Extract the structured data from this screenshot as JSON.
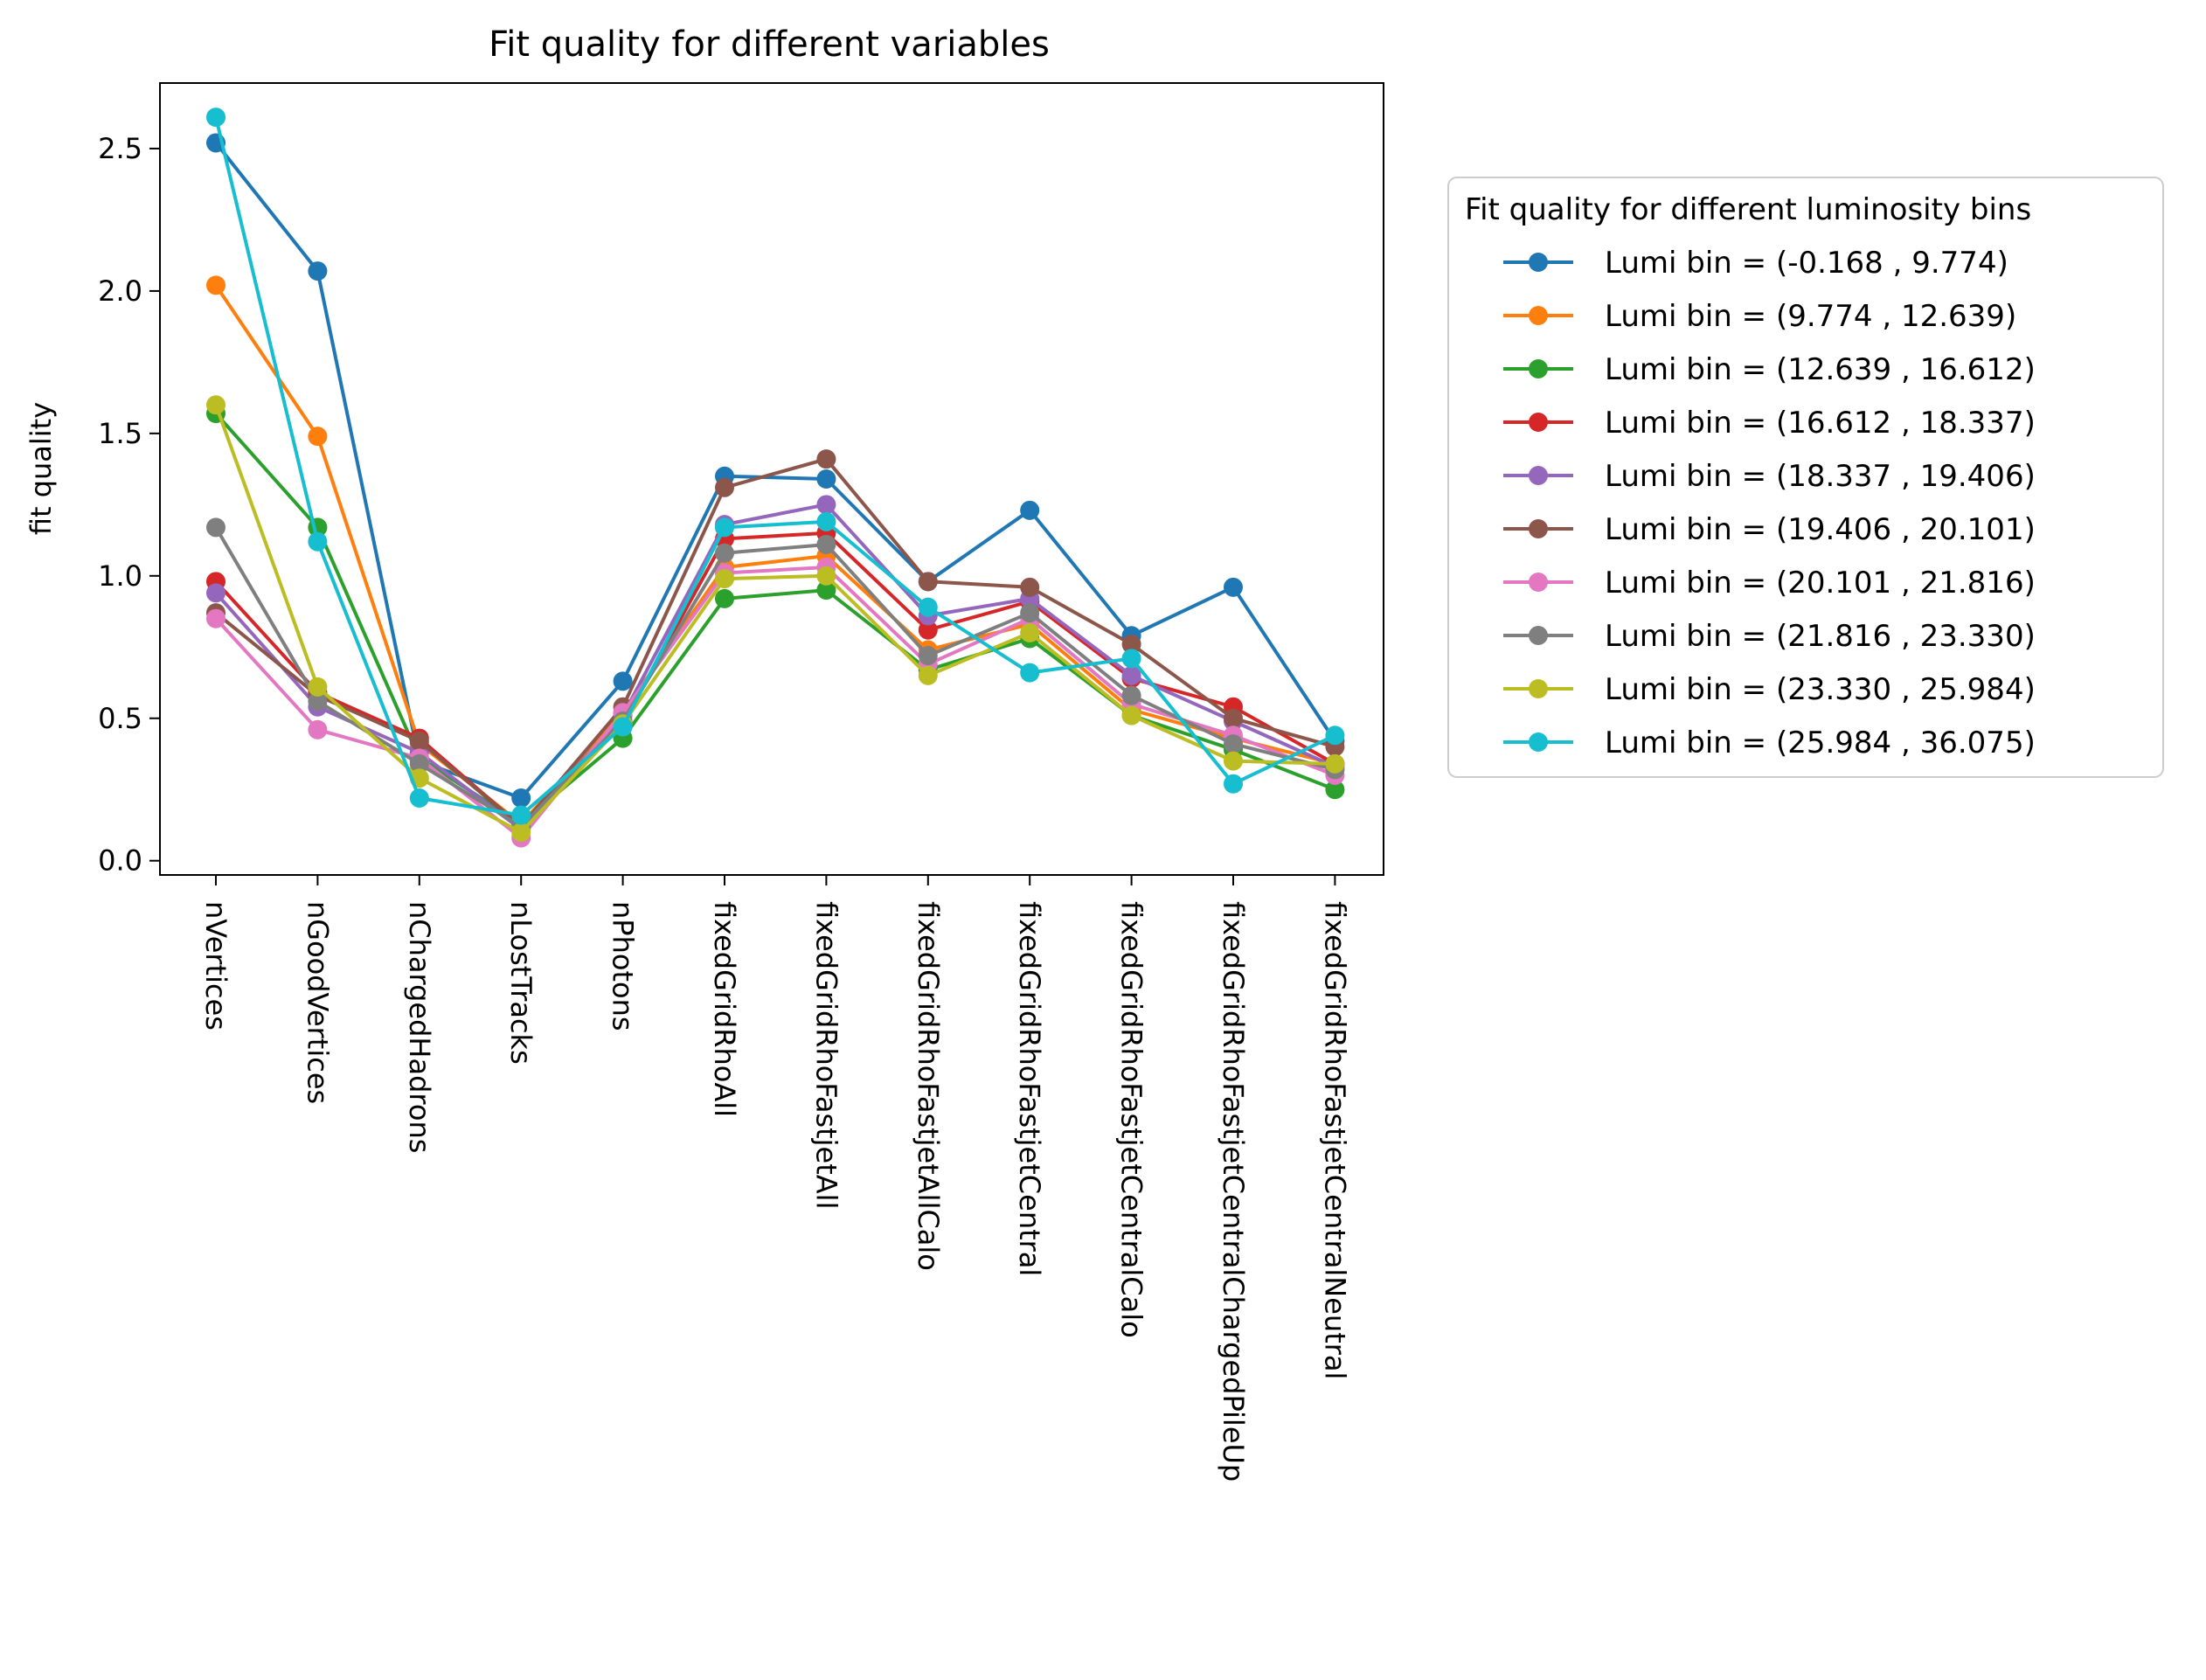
{
  "chart_data": {
    "type": "line",
    "title": "Fit quality for different variables",
    "xlabel": "",
    "ylabel": "fit quality",
    "ylim": [
      -0.05,
      2.73
    ],
    "yticks": [
      "0.0",
      "0.5",
      "1.0",
      "1.5",
      "2.0",
      "2.5"
    ],
    "ytick_values": [
      0,
      0.5,
      1.0,
      1.5,
      2.0,
      2.5
    ],
    "grid": false,
    "legend_title": "Fit quality for different luminosity bins",
    "legend_position": "outside-right",
    "categories": [
      "nVertices",
      "nGoodVertices",
      "nChargedHadrons",
      "nLostTracks",
      "nPhotons",
      "fixedGridRhoAll",
      "fixedGridRhoFastjetAll",
      "fixedGridRhoFastjetAllCalo",
      "fixedGridRhoFastjetCentral",
      "fixedGridRhoFastjetCentralCalo",
      "fixedGridRhoFastjetCentralChargedPileUp",
      "fixedGridRhoFastjetCentralNeutral"
    ],
    "series": [
      {
        "name": "Lumi bin = (-0.168 , 9.774)",
        "color": "#1f77b4",
        "values": [
          2.52,
          2.07,
          0.35,
          0.22,
          0.63,
          1.35,
          1.34,
          0.98,
          1.23,
          0.79,
          0.96,
          0.42
        ]
      },
      {
        "name": "Lumi bin = (9.774 , 12.639)",
        "color": "#ff7f0e",
        "values": [
          2.02,
          1.49,
          0.41,
          0.13,
          0.52,
          1.03,
          1.07,
          0.74,
          0.83,
          0.53,
          0.43,
          0.34
        ]
      },
      {
        "name": "Lumi bin = (12.639 , 16.612)",
        "color": "#2ca02c",
        "values": [
          1.57,
          1.17,
          0.36,
          0.13,
          0.43,
          0.92,
          0.95,
          0.67,
          0.78,
          0.51,
          0.39,
          0.25
        ]
      },
      {
        "name": "Lumi bin = (16.612 , 18.337)",
        "color": "#d62728",
        "values": [
          0.98,
          0.59,
          0.43,
          0.12,
          0.48,
          1.13,
          1.15,
          0.81,
          0.91,
          0.64,
          0.54,
          0.34
        ]
      },
      {
        "name": "Lumi bin = (18.337 , 19.406)",
        "color": "#9467bd",
        "values": [
          0.94,
          0.54,
          0.38,
          0.11,
          0.51,
          1.18,
          1.25,
          0.86,
          0.92,
          0.65,
          0.49,
          0.33
        ]
      },
      {
        "name": "Lumi bin = (19.406 , 20.101)",
        "color": "#8c564b",
        "values": [
          0.87,
          0.58,
          0.42,
          0.12,
          0.54,
          1.31,
          1.41,
          0.98,
          0.96,
          0.76,
          0.5,
          0.4
        ]
      },
      {
        "name": "Lumi bin = (20.101 , 21.816)",
        "color": "#e377c2",
        "values": [
          0.85,
          0.46,
          0.36,
          0.08,
          0.52,
          1.01,
          1.03,
          0.69,
          0.85,
          0.55,
          0.44,
          0.3
        ]
      },
      {
        "name": "Lumi bin = (21.816 , 23.330)",
        "color": "#7f7f7f",
        "values": [
          1.17,
          0.56,
          0.34,
          0.12,
          0.49,
          1.08,
          1.11,
          0.72,
          0.87,
          0.58,
          0.41,
          0.32
        ]
      },
      {
        "name": "Lumi bin = (23.330 , 25.984)",
        "color": "#bcbd22",
        "values": [
          1.6,
          0.61,
          0.29,
          0.1,
          0.48,
          0.99,
          1.0,
          0.65,
          0.8,
          0.51,
          0.35,
          0.34
        ]
      },
      {
        "name": "Lumi bin = (25.984 , 36.075)",
        "color": "#17becf",
        "values": [
          2.61,
          1.12,
          0.22,
          0.16,
          0.47,
          1.17,
          1.19,
          0.89,
          0.66,
          0.71,
          0.27,
          0.44
        ]
      }
    ]
  }
}
